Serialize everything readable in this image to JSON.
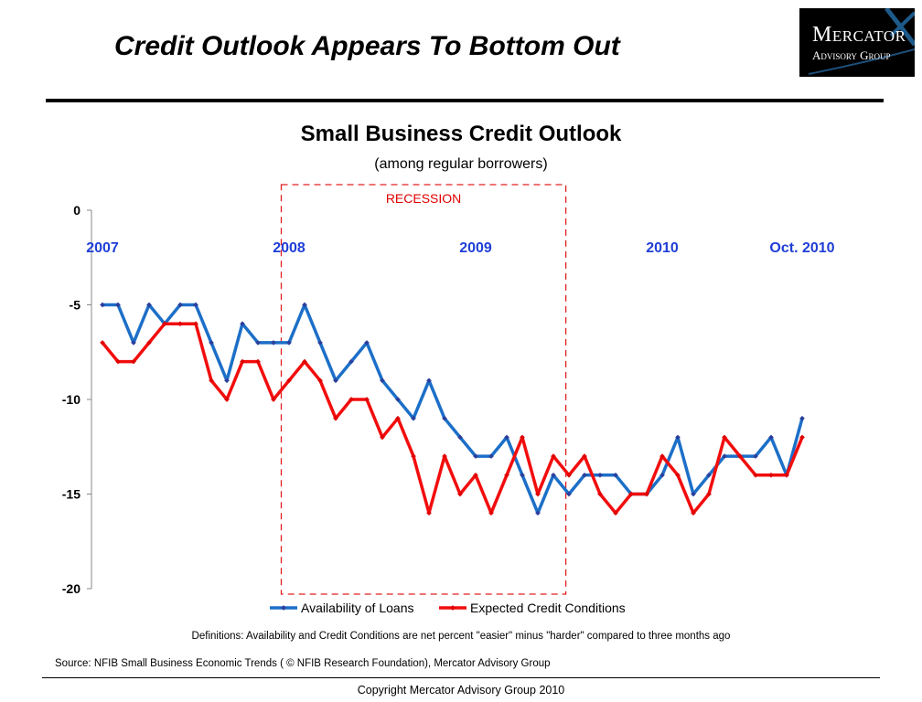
{
  "slide": {
    "title": "Credit Outlook Appears To Bottom Out",
    "logo_line1": "Mercator",
    "logo_line2": "Advisory Group",
    "definitions": "Definitions:  Availability and Credit Conditions are net percent \"easier\" minus \"harder\" compared to three months ago",
    "source": "Source: NFIB Small Business Economic Trends ( © NFIB Research Foundation),  Mercator Advisory Group",
    "copyright": "Copyright Mercator Advisory Group 2010"
  },
  "chart_data": {
    "type": "line",
    "title": "Small Business Credit Outlook",
    "subtitle": "(among regular borrowers)",
    "annotation": "RECESSION",
    "recession_range_index": [
      11.5,
      29.8
    ],
    "ylim": [
      -20,
      0
    ],
    "yticks": [
      0,
      -5,
      -10,
      -15,
      -20
    ],
    "ytick_labels": [
      "0",
      "-5",
      "-10",
      "-15",
      "-20"
    ],
    "x_labels": [
      {
        "index": 0,
        "label": "2007"
      },
      {
        "index": 12,
        "label": "2008"
      },
      {
        "index": 24,
        "label": "2009"
      },
      {
        "index": 36,
        "label": "2010"
      },
      {
        "index": 45,
        "label": "Oct. 2010"
      }
    ],
    "legend_position": "bottom",
    "series": [
      {
        "name": "Availability of Loans",
        "color": "#1c6fc8",
        "marker_color": "#2b3f9c",
        "values": [
          -5,
          -5,
          -7,
          -5,
          -6,
          -5,
          -5,
          -7,
          -9,
          -6,
          -7,
          -7,
          -7,
          -5,
          -7,
          -9,
          -8,
          -7,
          -9,
          -10,
          -11,
          -9,
          -11,
          -12,
          -13,
          -13,
          -12,
          -14,
          -16,
          -14,
          -15,
          -14,
          -14,
          -14,
          -15,
          -15,
          -14,
          -12,
          -15,
          -14,
          -13,
          -13,
          -13,
          -12,
          -14,
          -11
        ]
      },
      {
        "name": "Expected Credit Conditions",
        "color": "#f20d0d",
        "marker_color": "#e00000",
        "values": [
          -7,
          -8,
          -8,
          -7,
          -6,
          -6,
          -6,
          -9,
          -10,
          -8,
          -8,
          -10,
          -9,
          -8,
          -9,
          -11,
          -10,
          -10,
          -12,
          -11,
          -13,
          -16,
          -13,
          -15,
          -14,
          -16,
          -14,
          -12,
          -15,
          -13,
          -14,
          -13,
          -15,
          -16,
          -15,
          -15,
          -13,
          -14,
          -16,
          -15,
          -12,
          -13,
          -14,
          -14,
          -14,
          -12
        ]
      }
    ]
  }
}
